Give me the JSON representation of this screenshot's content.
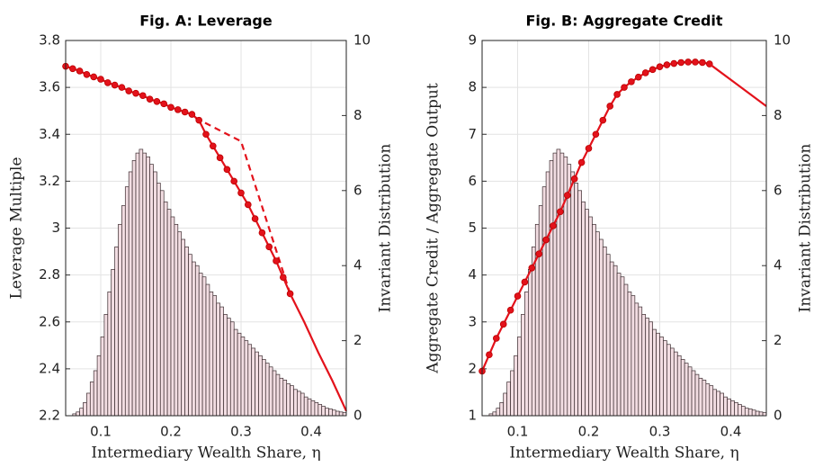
{
  "chart_data": [
    {
      "type": "histogram",
      "title": "Fig. A: Leverage",
      "xlabel": "Intermediary Wealth Share, η",
      "ylabel": "Leverage Multiple",
      "y2label": "Invariant Distribution",
      "xlim": [
        0.05,
        0.45
      ],
      "xticks": [
        0.1,
        0.2,
        0.3,
        0.4
      ],
      "ylim": [
        2.2,
        3.8
      ],
      "yticks": [
        2.2,
        2.4,
        2.6,
        2.8,
        3,
        3.2,
        3.4,
        3.6,
        3.8
      ],
      "y2lim": [
        0,
        10
      ],
      "y2ticks": [
        0,
        2,
        4,
        6,
        8,
        10
      ],
      "grid": true,
      "bar_color": "#f2dde2",
      "bar_edge": "#3a2a2e",
      "bins": [
        0.06,
        0.065,
        0.07,
        0.075,
        0.08,
        0.085,
        0.09,
        0.095,
        0.1,
        0.105,
        0.11,
        0.115,
        0.12,
        0.125,
        0.13,
        0.135,
        0.14,
        0.145,
        0.15,
        0.155,
        0.16,
        0.165,
        0.17,
        0.175,
        0.18,
        0.185,
        0.19,
        0.195,
        0.2,
        0.205,
        0.21,
        0.215,
        0.22,
        0.225,
        0.23,
        0.235,
        0.24,
        0.245,
        0.25,
        0.255,
        0.26,
        0.265,
        0.27,
        0.275,
        0.28,
        0.285,
        0.29,
        0.295,
        0.3,
        0.305,
        0.31,
        0.315,
        0.32,
        0.325,
        0.33,
        0.335,
        0.34,
        0.345,
        0.35,
        0.355,
        0.36,
        0.365,
        0.37,
        0.375,
        0.38,
        0.385,
        0.39,
        0.395,
        0.4,
        0.405,
        0.41,
        0.415,
        0.42,
        0.425,
        0.43,
        0.435,
        0.44,
        0.445,
        0.45
      ],
      "counts": [
        0.05,
        0.1,
        0.2,
        0.35,
        0.6,
        0.9,
        1.2,
        1.6,
        2.1,
        2.7,
        3.3,
        3.9,
        4.5,
        5.1,
        5.6,
        6.1,
        6.5,
        6.8,
        7.0,
        7.1,
        7.0,
        6.9,
        6.7,
        6.5,
        6.2,
        6.0,
        5.7,
        5.5,
        5.3,
        5.1,
        4.9,
        4.7,
        4.5,
        4.3,
        4.1,
        4.0,
        3.8,
        3.7,
        3.5,
        3.3,
        3.2,
        3.0,
        2.9,
        2.7,
        2.6,
        2.5,
        2.3,
        2.2,
        2.1,
        2.0,
        1.9,
        1.8,
        1.7,
        1.6,
        1.5,
        1.4,
        1.3,
        1.2,
        1.1,
        1.0,
        0.95,
        0.85,
        0.8,
        0.7,
        0.65,
        0.6,
        0.5,
        0.45,
        0.4,
        0.35,
        0.3,
        0.25,
        0.2,
        0.18,
        0.15,
        0.12,
        0.1,
        0.08
      ],
      "series": [
        {
          "color": "#e3121b",
          "style": "dashed",
          "marker": false,
          "x": [
            0.235,
            0.3,
            0.37
          ],
          "values": [
            3.47,
            3.37,
            2.72
          ]
        },
        {
          "color": "#e3121b",
          "style": "solid",
          "marker": true,
          "x": [
            0.05,
            0.06,
            0.07,
            0.08,
            0.09,
            0.1,
            0.11,
            0.12,
            0.13,
            0.14,
            0.15,
            0.16,
            0.17,
            0.18,
            0.19,
            0.2,
            0.21,
            0.22,
            0.23,
            0.24,
            0.25,
            0.26,
            0.27,
            0.28,
            0.29,
            0.3,
            0.31,
            0.32,
            0.33,
            0.34,
            0.35,
            0.36,
            0.37
          ],
          "values": [
            3.69,
            3.68,
            3.67,
            3.655,
            3.645,
            3.635,
            3.62,
            3.61,
            3.6,
            3.585,
            3.575,
            3.565,
            3.55,
            3.54,
            3.53,
            3.515,
            3.505,
            3.495,
            3.485,
            3.46,
            3.4,
            3.35,
            3.3,
            3.25,
            3.2,
            3.15,
            3.1,
            3.04,
            2.98,
            2.92,
            2.86,
            2.79,
            2.72
          ]
        },
        {
          "color": "#e3121b",
          "style": "solid",
          "marker": false,
          "x": [
            0.37,
            0.39,
            0.41,
            0.43,
            0.45
          ],
          "values": [
            2.72,
            2.6,
            2.47,
            2.35,
            2.22
          ]
        }
      ]
    },
    {
      "type": "histogram",
      "title": "Fig. B: Aggregate Credit",
      "xlabel": "Intermediary Wealth Share, η",
      "ylabel": "Aggregate Credit / Aggregate Output",
      "y2label": "Invariant Distribution",
      "xlim": [
        0.05,
        0.45
      ],
      "xticks": [
        0.1,
        0.2,
        0.3,
        0.4
      ],
      "ylim": [
        1,
        9
      ],
      "yticks": [
        1,
        2,
        3,
        4,
        5,
        6,
        7,
        8,
        9
      ],
      "y2lim": [
        0,
        10
      ],
      "y2ticks": [
        0,
        2,
        4,
        6,
        8,
        10
      ],
      "grid": true,
      "bar_color": "#f2dde2",
      "bar_edge": "#3a2a2e",
      "bins": [
        0.06,
        0.065,
        0.07,
        0.075,
        0.08,
        0.085,
        0.09,
        0.095,
        0.1,
        0.105,
        0.11,
        0.115,
        0.12,
        0.125,
        0.13,
        0.135,
        0.14,
        0.145,
        0.15,
        0.155,
        0.16,
        0.165,
        0.17,
        0.175,
        0.18,
        0.185,
        0.19,
        0.195,
        0.2,
        0.205,
        0.21,
        0.215,
        0.22,
        0.225,
        0.23,
        0.235,
        0.24,
        0.245,
        0.25,
        0.255,
        0.26,
        0.265,
        0.27,
        0.275,
        0.28,
        0.285,
        0.29,
        0.295,
        0.3,
        0.305,
        0.31,
        0.315,
        0.32,
        0.325,
        0.33,
        0.335,
        0.34,
        0.345,
        0.35,
        0.355,
        0.36,
        0.365,
        0.37,
        0.375,
        0.38,
        0.385,
        0.39,
        0.395,
        0.4,
        0.405,
        0.41,
        0.415,
        0.42,
        0.425,
        0.43,
        0.435,
        0.44,
        0.445,
        0.45
      ],
      "counts": [
        0.05,
        0.1,
        0.2,
        0.35,
        0.6,
        0.9,
        1.2,
        1.6,
        2.1,
        2.7,
        3.3,
        3.9,
        4.5,
        5.1,
        5.6,
        6.1,
        6.5,
        6.8,
        7.0,
        7.1,
        7.0,
        6.9,
        6.7,
        6.5,
        6.2,
        6.0,
        5.7,
        5.5,
        5.3,
        5.1,
        4.9,
        4.7,
        4.5,
        4.3,
        4.1,
        4.0,
        3.8,
        3.7,
        3.5,
        3.3,
        3.2,
        3.0,
        2.9,
        2.7,
        2.6,
        2.5,
        2.3,
        2.2,
        2.1,
        2.0,
        1.9,
        1.8,
        1.7,
        1.6,
        1.5,
        1.4,
        1.3,
        1.2,
        1.1,
        1.0,
        0.95,
        0.85,
        0.8,
        0.7,
        0.65,
        0.6,
        0.5,
        0.45,
        0.4,
        0.35,
        0.3,
        0.25,
        0.2,
        0.18,
        0.15,
        0.12,
        0.1,
        0.08
      ],
      "series": [
        {
          "color": "#e3121b",
          "style": "solid",
          "marker": true,
          "x": [
            0.05,
            0.06,
            0.07,
            0.08,
            0.09,
            0.1,
            0.11,
            0.12,
            0.13,
            0.14,
            0.15,
            0.16,
            0.17,
            0.18,
            0.19,
            0.2,
            0.21,
            0.22,
            0.23,
            0.24,
            0.25,
            0.26,
            0.27,
            0.28,
            0.29,
            0.3,
            0.31,
            0.32,
            0.33,
            0.34,
            0.35,
            0.36,
            0.37
          ],
          "values": [
            1.95,
            2.3,
            2.65,
            2.95,
            3.25,
            3.55,
            3.85,
            4.15,
            4.45,
            4.75,
            5.05,
            5.35,
            5.7,
            6.05,
            6.4,
            6.7,
            7.0,
            7.3,
            7.6,
            7.85,
            8.0,
            8.12,
            8.22,
            8.31,
            8.38,
            8.44,
            8.48,
            8.51,
            8.53,
            8.54,
            8.54,
            8.53,
            8.5
          ]
        },
        {
          "color": "#e3121b",
          "style": "solid",
          "marker": false,
          "x": [
            0.37,
            0.41,
            0.45
          ],
          "values": [
            8.5,
            8.05,
            7.6
          ]
        }
      ]
    }
  ]
}
